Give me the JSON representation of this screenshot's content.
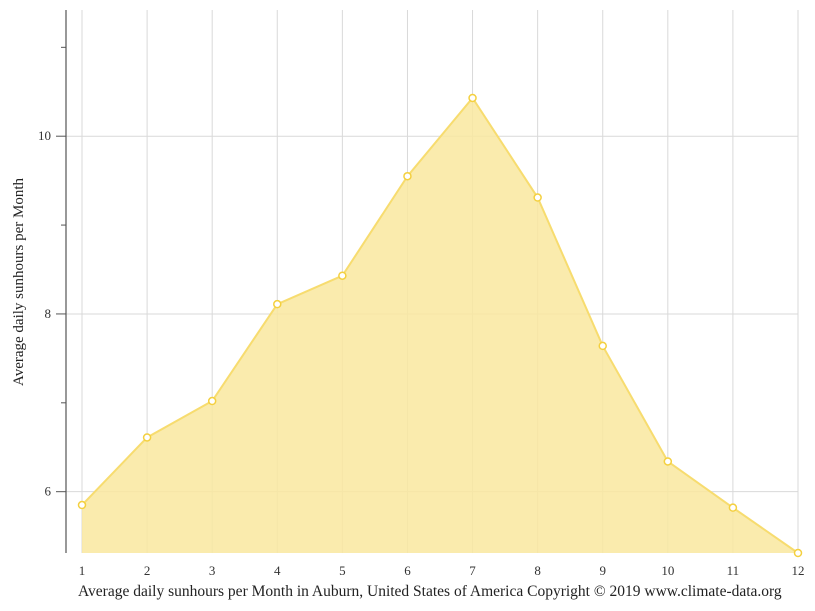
{
  "chart_data": {
    "type": "area",
    "title": "Average daily sunhours per Month in Auburn, United States of America Copyright © 2019 www.climate-data.org",
    "xlabel": "",
    "ylabel": "Average daily sunhours per Month",
    "categories": [
      "1",
      "2",
      "3",
      "4",
      "5",
      "6",
      "7",
      "8",
      "9",
      "10",
      "11",
      "12"
    ],
    "series": [
      {
        "name": "Average daily sunhours",
        "values": [
          5.85,
          6.61,
          7.02,
          8.11,
          8.43,
          9.55,
          10.43,
          9.31,
          7.64,
          6.34,
          5.82,
          5.31
        ],
        "color": "#f9e79f",
        "line_color": "#f7dc6f"
      }
    ],
    "ylim": [
      5.31,
      11.42
    ],
    "y_major_ticks": [
      6,
      8,
      10
    ],
    "y_minor_ticks": [
      7,
      9,
      11
    ],
    "grid": true,
    "legend": "none"
  },
  "caption": "Average daily sunhours per Month in Auburn, United States of America Copyright © 2019 www.climate-data.org",
  "y_axis_title": "Average daily sunhours per Month",
  "colors": {
    "fill": "#f9e79f",
    "stroke": "#f7dc6f",
    "grid": "#d9d9d9",
    "axis": "#555555"
  }
}
